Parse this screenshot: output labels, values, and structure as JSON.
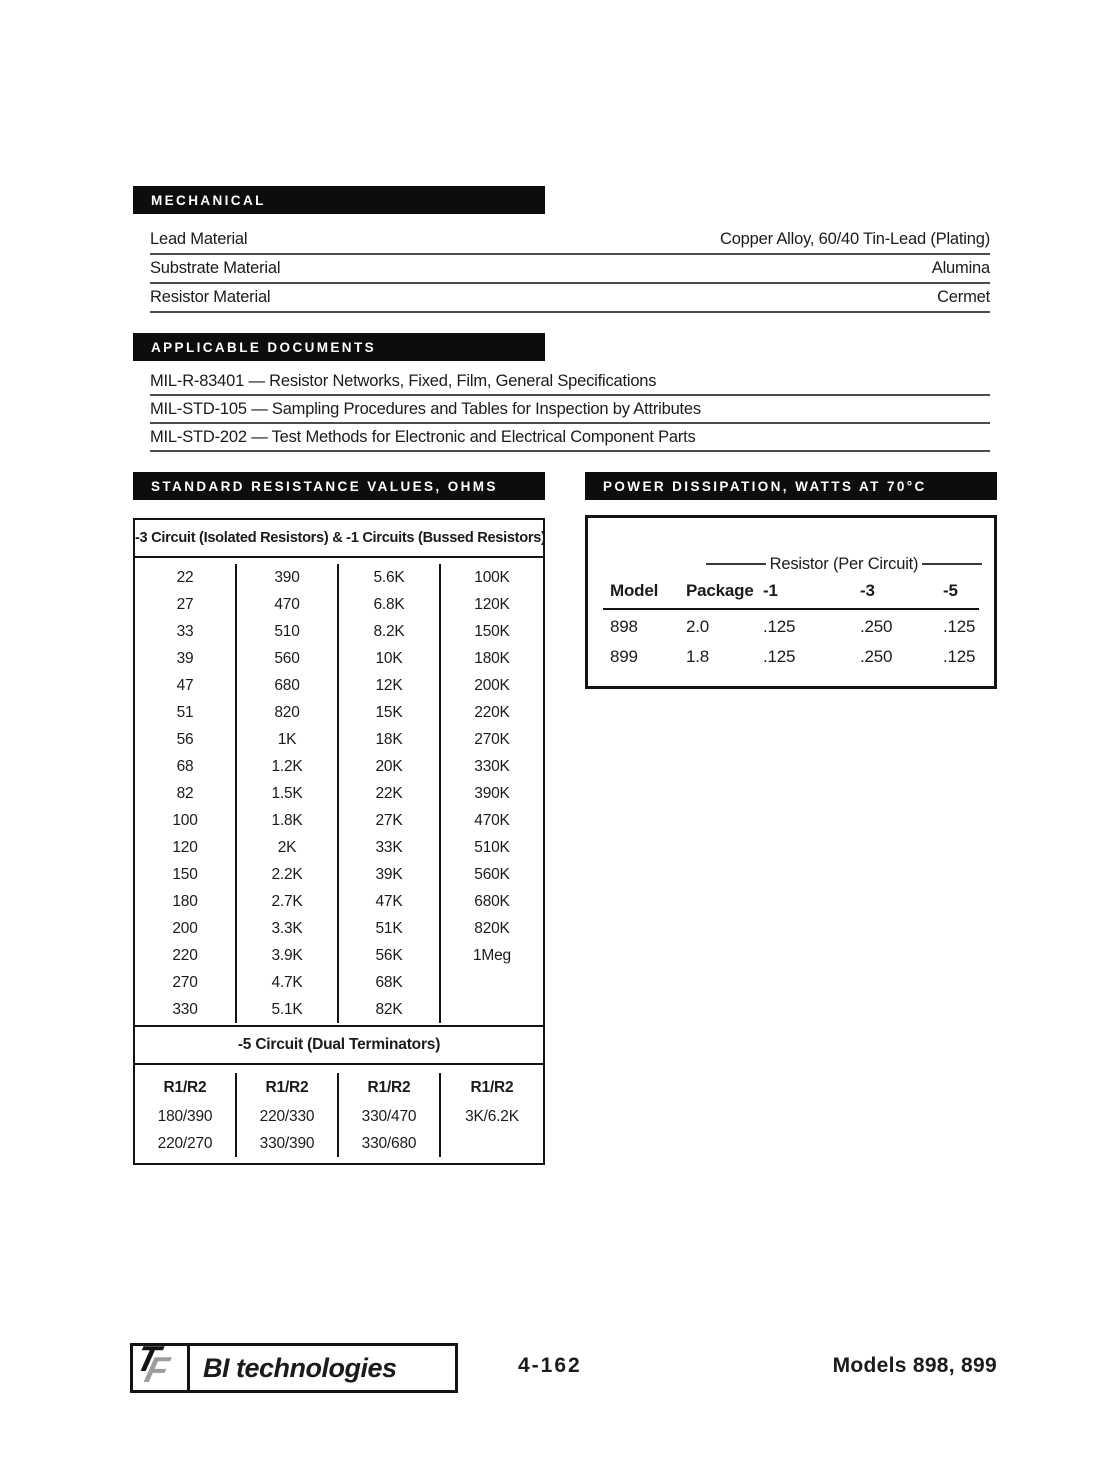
{
  "sections": {
    "mechanical": {
      "title": "MECHANICAL",
      "rows": [
        {
          "label": "Lead Material",
          "value": "Copper Alloy, 60/40 Tin-Lead (Plating)"
        },
        {
          "label": "Substrate Material",
          "value": "Alumina"
        },
        {
          "label": "Resistor Material",
          "value": "Cermet"
        }
      ]
    },
    "applicable_documents": {
      "title": "APPLICABLE DOCUMENTS",
      "items": [
        "MIL-R-83401 — Resistor Networks, Fixed, Film, General Specifications",
        "MIL-STD-105 — Sampling Procedures and Tables for Inspection by Attributes",
        "MIL-STD-202 — Test Methods for Electronic and Electrical Component Parts"
      ]
    },
    "standard_resistance": {
      "title": "STANDARD RESISTANCE VALUES, OHMS",
      "main_header": "-3 Circuit (Isolated Resistors) & -1 Circuits (Bussed Resistors)",
      "rows": [
        [
          "22",
          "390",
          "5.6K",
          "100K"
        ],
        [
          "27",
          "470",
          "6.8K",
          "120K"
        ],
        [
          "33",
          "510",
          "8.2K",
          "150K"
        ],
        [
          "39",
          "560",
          "10K",
          "180K"
        ],
        [
          "47",
          "680",
          "12K",
          "200K"
        ],
        [
          "51",
          "820",
          "15K",
          "220K"
        ],
        [
          "56",
          "1K",
          "18K",
          "270K"
        ],
        [
          "68",
          "1.2K",
          "20K",
          "330K"
        ],
        [
          "82",
          "1.5K",
          "22K",
          "390K"
        ],
        [
          "100",
          "1.8K",
          "27K",
          "470K"
        ],
        [
          "120",
          "2K",
          "33K",
          "510K"
        ],
        [
          "150",
          "2.2K",
          "39K",
          "560K"
        ],
        [
          "180",
          "2.7K",
          "47K",
          "680K"
        ],
        [
          "200",
          "3.3K",
          "51K",
          "820K"
        ],
        [
          "220",
          "3.9K",
          "56K",
          "1Meg"
        ],
        [
          "270",
          "4.7K",
          "68K",
          ""
        ],
        [
          "330",
          "5.1K",
          "82K",
          ""
        ]
      ],
      "dual_terminators": {
        "header": "-5 Circuit (Dual Terminators)",
        "column_headers": [
          "R1/R2",
          "R1/R2",
          "R1/R2",
          "R1/R2"
        ],
        "rows": [
          [
            "180/390",
            "220/330",
            "330/470",
            "3K/6.2K"
          ],
          [
            "220/270",
            "330/390",
            "330/680",
            ""
          ]
        ]
      }
    },
    "power_dissipation": {
      "title": "POWER DISSIPATION, WATTS AT 70°C",
      "group_header": "Resistor (Per Circuit)",
      "columns": [
        "Model",
        "Package",
        "-1",
        "-3",
        "-5"
      ],
      "rows": [
        [
          "898",
          "2.0",
          ".125",
          ".250",
          ".125"
        ],
        [
          "899",
          "1.8",
          ".125",
          ".250",
          ".125"
        ]
      ]
    }
  },
  "footer": {
    "logo_monogram": {
      "t": "T",
      "f": "F"
    },
    "logo_text": "BI technologies",
    "page_number": "4-162",
    "models": "Models 898, 899"
  }
}
